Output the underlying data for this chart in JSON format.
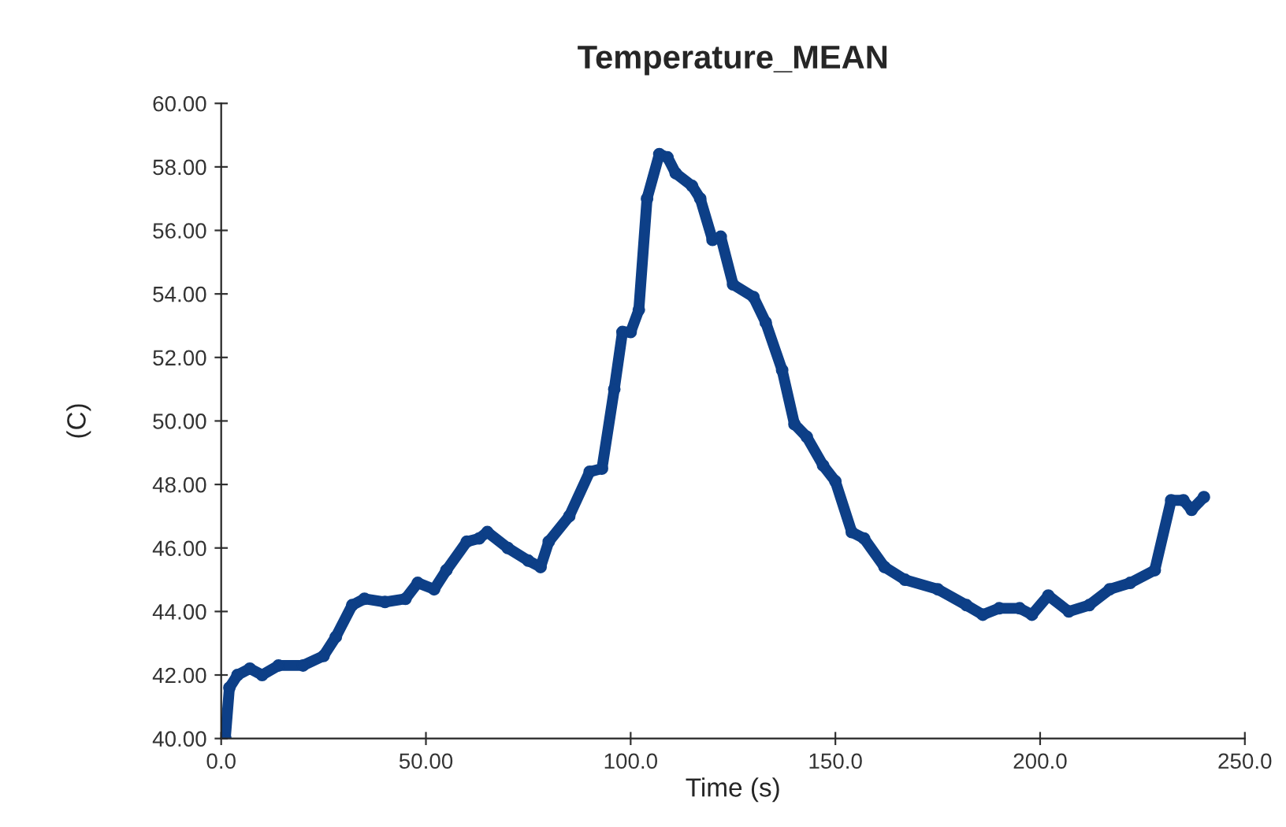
{
  "chart_data": {
    "type": "line",
    "title": "Temperature_MEAN",
    "xlabel": "Time (s)",
    "ylabel": "(C)",
    "x": [
      0,
      1,
      2,
      4,
      7,
      10,
      14,
      20,
      25,
      28,
      32,
      35,
      40,
      45,
      48,
      52,
      55,
      60,
      63,
      65,
      70,
      75,
      78,
      80,
      85,
      90,
      93,
      96,
      98,
      100,
      102,
      104,
      107,
      109,
      111,
      115,
      117,
      120,
      122,
      125,
      130,
      133,
      137,
      140,
      143,
      147,
      150,
      154,
      157,
      162,
      167,
      175,
      182,
      186,
      190,
      195,
      198,
      202,
      207,
      212,
      217,
      222,
      228,
      232,
      235,
      237,
      240
    ],
    "series": [
      {
        "color": "#0d3f87",
        "values": [
          40.0,
          40.0,
          41.6,
          42.0,
          42.2,
          42.0,
          42.3,
          42.3,
          42.6,
          43.2,
          44.2,
          44.4,
          44.3,
          44.4,
          44.9,
          44.7,
          45.3,
          46.2,
          46.3,
          46.5,
          46.0,
          45.6,
          45.4,
          46.2,
          47.0,
          48.4,
          48.5,
          51.0,
          52.8,
          52.8,
          53.5,
          57.0,
          58.4,
          58.3,
          57.8,
          57.4,
          57.0,
          55.7,
          55.8,
          54.3,
          53.9,
          53.1,
          51.6,
          49.9,
          49.5,
          48.6,
          48.1,
          46.5,
          46.3,
          45.4,
          45.0,
          44.7,
          44.2,
          43.9,
          44.1,
          44.1,
          43.9,
          44.5,
          44.0,
          44.2,
          44.7,
          44.9,
          45.3,
          47.5,
          47.5,
          47.2,
          47.6
        ]
      }
    ],
    "xlim": [
      0,
      250
    ],
    "xticks": [
      {
        "value": 0,
        "label": "0.0"
      },
      {
        "value": 50,
        "label": "50.00"
      },
      {
        "value": 100,
        "label": "100.0"
      },
      {
        "value": 150,
        "label": "150.0"
      },
      {
        "value": 200,
        "label": "200.0"
      },
      {
        "value": 250,
        "label": "250.0"
      }
    ],
    "ylim": [
      40,
      60
    ],
    "yticks": [
      {
        "value": 40,
        "label": "40.00"
      },
      {
        "value": 42,
        "label": "42.00"
      },
      {
        "value": 44,
        "label": "44.00"
      },
      {
        "value": 46,
        "label": "46.00"
      },
      {
        "value": 48,
        "label": "48.00"
      },
      {
        "value": 50,
        "label": "50.00"
      },
      {
        "value": 52,
        "label": "52.00"
      },
      {
        "value": 54,
        "label": "54.00"
      },
      {
        "value": 56,
        "label": "56.00"
      },
      {
        "value": 58,
        "label": "58.00"
      },
      {
        "value": 60,
        "label": "60.00"
      }
    ],
    "grid": false,
    "marker": "circle",
    "line_style": "solid"
  }
}
